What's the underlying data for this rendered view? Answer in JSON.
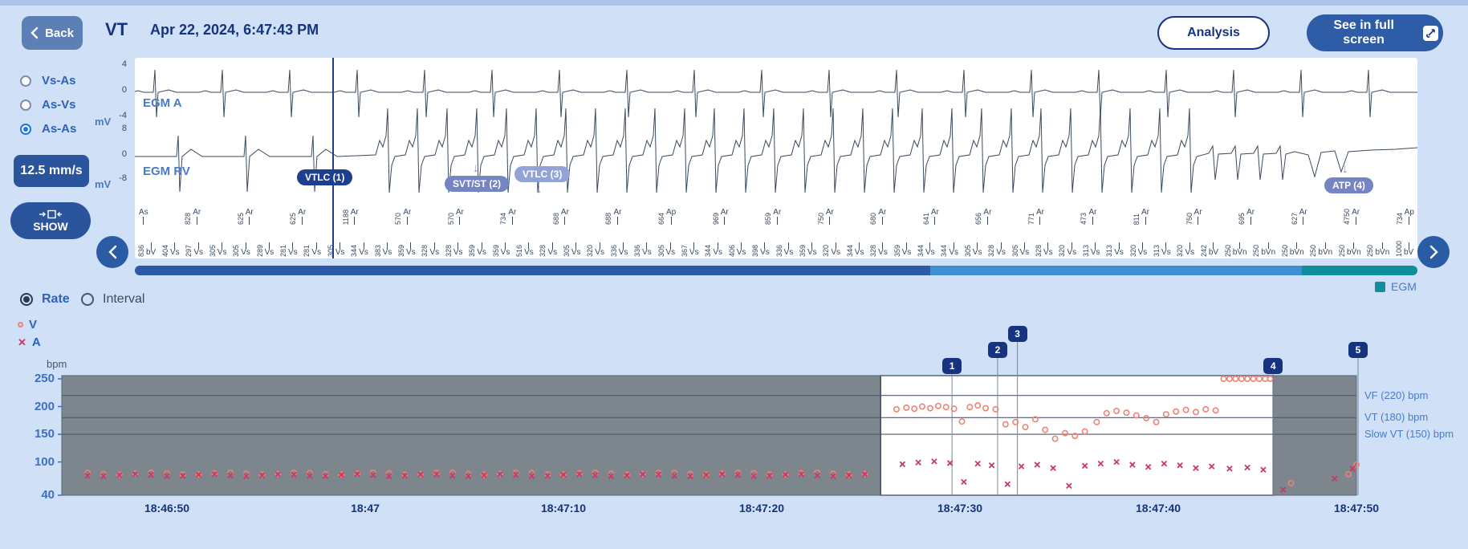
{
  "header": {
    "back_label": "Back",
    "episode_type": "VT",
    "timestamp": "Apr 22, 2024, 6:47:43 PM",
    "analysis_label": "Analysis",
    "fullscreen_label": "See in full screen"
  },
  "sidebar": {
    "channel_options": [
      {
        "label": "Vs-As",
        "selected": false
      },
      {
        "label": "As-Vs",
        "selected": false
      },
      {
        "label": "As-As",
        "selected": true
      }
    ],
    "speed_label": "12.5 mm/s",
    "show_label": "SHOW"
  },
  "egm": {
    "channel_a": {
      "label": "EGM A",
      "unit": "mV",
      "scale_ticks": [
        "4",
        "0",
        "-4"
      ]
    },
    "channel_rv": {
      "label": "EGM RV",
      "unit": "mV",
      "scale_ticks": [
        "8",
        "0",
        "-8"
      ]
    },
    "episode_markers": [
      {
        "label": "VTLC (1)"
      },
      {
        "label": "SVT/ST (2)"
      },
      {
        "label": "VTLC (3)"
      },
      {
        "label": "ATP (4)"
      }
    ],
    "marker_channel": {
      "atrial": [
        [
          "",
          "As"
        ],
        [
          "828",
          "Ar"
        ],
        [
          "625",
          "Ar"
        ],
        [
          "625",
          "Ar"
        ],
        [
          "1188",
          "Ar"
        ],
        [
          "570",
          "Ar"
        ],
        [
          "570",
          "Ar"
        ],
        [
          "734",
          "Ar"
        ],
        [
          "688",
          "Ar"
        ],
        [
          "688",
          "Ar"
        ],
        [
          "664",
          "Ap"
        ],
        [
          "969",
          "Ar"
        ],
        [
          "859",
          "Ar"
        ],
        [
          "750",
          "Ar"
        ],
        [
          "680",
          "Ar"
        ],
        [
          "641",
          "Ar"
        ],
        [
          "656",
          "Ar"
        ],
        [
          "771",
          "Ar"
        ],
        [
          "473",
          "Ar"
        ],
        [
          "811",
          "Ar"
        ],
        [
          "750",
          "Ar"
        ],
        [
          "695",
          "Ar"
        ],
        [
          "627",
          "Ar"
        ],
        [
          "4750",
          "Ar"
        ],
        [
          "734",
          "Ap"
        ]
      ],
      "ventricular": [
        [
          "836",
          "bV"
        ],
        [
          "404",
          "Vs"
        ],
        [
          "297",
          "Vs"
        ],
        [
          "305",
          "Vs"
        ],
        [
          "305",
          "Vs"
        ],
        [
          "289",
          "Vs"
        ],
        [
          "281",
          "Vs"
        ],
        [
          "281",
          "Vs"
        ],
        [
          "305",
          "Vs"
        ],
        [
          "344",
          "Vs"
        ],
        [
          "383",
          "Vs"
        ],
        [
          "359",
          "Vs"
        ],
        [
          "328",
          "Vs"
        ],
        [
          "328",
          "Vs"
        ],
        [
          "359",
          "Vs"
        ],
        [
          "359",
          "Vs"
        ],
        [
          "516",
          "Vs"
        ],
        [
          "328",
          "Vs"
        ],
        [
          "305",
          "Vs"
        ],
        [
          "320",
          "Vs"
        ],
        [
          "336",
          "Vs"
        ],
        [
          "336",
          "Vs"
        ],
        [
          "305",
          "Vs"
        ],
        [
          "367",
          "Vs"
        ],
        [
          "344",
          "Vs"
        ],
        [
          "406",
          "Vs"
        ],
        [
          "398",
          "Vs"
        ],
        [
          "336",
          "Vs"
        ],
        [
          "359",
          "Vs"
        ],
        [
          "320",
          "Vs"
        ],
        [
          "344",
          "Vs"
        ],
        [
          "328",
          "Vs"
        ],
        [
          "359",
          "Vs"
        ],
        [
          "344",
          "Vs"
        ],
        [
          "344",
          "Vs"
        ],
        [
          "305",
          "Vs"
        ],
        [
          "328",
          "Vs"
        ],
        [
          "305",
          "Vs"
        ],
        [
          "328",
          "Vs"
        ],
        [
          "320",
          "Vs"
        ],
        [
          "313",
          "Vs"
        ],
        [
          "313",
          "Vs"
        ],
        [
          "320",
          "Vs"
        ],
        [
          "313",
          "Vs"
        ],
        [
          "320",
          "Vs"
        ],
        [
          "242",
          "bV"
        ],
        [
          "250",
          "bVn"
        ],
        [
          "250",
          "bVn"
        ],
        [
          "250",
          "bVn"
        ],
        [
          "250",
          "bVn"
        ],
        [
          "250",
          "bVn"
        ],
        [
          "250",
          "bVn"
        ],
        [
          "1000",
          "bV"
        ]
      ]
    },
    "scrollbar_colors": [
      "#2d5aa8",
      "#3f8fd4",
      "#0f8f9e"
    ],
    "scrollbar_stops": [
      62,
      91
    ],
    "legend_label": "EGM",
    "legend_color": "#0f8f9e"
  },
  "view_toggle": {
    "options": [
      {
        "label": "Rate",
        "selected": true
      },
      {
        "label": "Interval",
        "selected": false
      }
    ]
  },
  "series_legend": {
    "v_label": "V",
    "a_label": "A",
    "v_color": "#ef8274",
    "a_color": "#c53a6a"
  },
  "chart_data": {
    "type": "scatter",
    "ylabel": "bpm",
    "ylim": [
      40,
      255
    ],
    "yticks": [
      250,
      200,
      150,
      100,
      40
    ],
    "x_tick_labels": [
      "18:46:50",
      "18:47",
      "18:47:10",
      "18:47:20",
      "18:47:30",
      "18:47:40",
      "18:47:50"
    ],
    "x_tick_seconds": [
      5,
      15,
      25,
      35,
      45,
      55,
      65
    ],
    "time_reference": "seconds after 18:46:45",
    "thresholds": [
      {
        "label": "VF (220) bpm",
        "bpm": 220
      },
      {
        "label": "VT (180) bpm",
        "bpm": 180
      },
      {
        "label": "Slow VT (150) bpm",
        "bpm": 150
      }
    ],
    "episode_window_seconds": [
      41.0,
      60.8
    ],
    "event_flags": [
      {
        "label": "1",
        "t": 44.6,
        "tier": 0
      },
      {
        "label": "2",
        "t": 46.9,
        "tier": 1
      },
      {
        "label": "3",
        "t": 47.9,
        "tier": 2
      },
      {
        "label": "4",
        "t": 60.8,
        "tier": 0
      },
      {
        "label": "5",
        "t": 65.6,
        "tier": 1
      }
    ],
    "series": [
      {
        "name": "V",
        "marker": "circle",
        "color": "#ef8274",
        "baseline": {
          "t_start": 1.0,
          "t_end": 40.6,
          "step": 0.8,
          "bpm": 79
        },
        "points": [
          [
            41.8,
            195
          ],
          [
            42.3,
            198
          ],
          [
            42.7,
            196
          ],
          [
            43.1,
            200
          ],
          [
            43.5,
            197
          ],
          [
            43.9,
            201
          ],
          [
            44.3,
            199
          ],
          [
            44.7,
            196
          ],
          [
            45.1,
            173
          ],
          [
            45.5,
            199
          ],
          [
            45.9,
            202
          ],
          [
            46.3,
            197
          ],
          [
            46.8,
            195
          ],
          [
            47.3,
            168
          ],
          [
            47.8,
            172
          ],
          [
            48.3,
            163
          ],
          [
            48.8,
            177
          ],
          [
            49.3,
            158
          ],
          [
            49.8,
            142
          ],
          [
            50.3,
            152
          ],
          [
            50.8,
            147
          ],
          [
            51.3,
            155
          ],
          [
            51.9,
            172
          ],
          [
            52.4,
            188
          ],
          [
            52.9,
            192
          ],
          [
            53.4,
            189
          ],
          [
            53.9,
            184
          ],
          [
            54.4,
            179
          ],
          [
            54.9,
            172
          ],
          [
            55.4,
            186
          ],
          [
            55.9,
            191
          ],
          [
            56.4,
            194
          ],
          [
            56.9,
            190
          ],
          [
            57.4,
            195
          ],
          [
            57.9,
            193
          ],
          [
            58.3,
            250
          ],
          [
            58.6,
            250
          ],
          [
            58.9,
            250
          ],
          [
            59.2,
            250
          ],
          [
            59.5,
            250
          ],
          [
            59.8,
            250
          ],
          [
            60.1,
            250
          ],
          [
            60.4,
            250
          ],
          [
            60.65,
            250
          ],
          [
            61.7,
            62
          ],
          [
            64.6,
            78
          ],
          [
            65.0,
            95
          ]
        ]
      },
      {
        "name": "A",
        "marker": "cross",
        "color": "#c53a6a",
        "baseline": {
          "t_start": 1.0,
          "t_end": 40.6,
          "step": 0.8,
          "bpm": 76
        },
        "points": [
          [
            42.1,
            96
          ],
          [
            42.9,
            99
          ],
          [
            43.7,
            101
          ],
          [
            44.5,
            98
          ],
          [
            45.2,
            64
          ],
          [
            45.9,
            97
          ],
          [
            46.6,
            94
          ],
          [
            47.4,
            60
          ],
          [
            48.1,
            92
          ],
          [
            48.9,
            95
          ],
          [
            49.7,
            89
          ],
          [
            50.5,
            57
          ],
          [
            51.3,
            93
          ],
          [
            52.1,
            97
          ],
          [
            52.9,
            100
          ],
          [
            53.7,
            95
          ],
          [
            54.5,
            91
          ],
          [
            55.3,
            97
          ],
          [
            56.1,
            94
          ],
          [
            56.9,
            89
          ],
          [
            57.7,
            92
          ],
          [
            58.6,
            88
          ],
          [
            59.5,
            90
          ],
          [
            60.3,
            86
          ],
          [
            61.3,
            50
          ],
          [
            63.9,
            70
          ],
          [
            64.8,
            88
          ]
        ]
      }
    ]
  }
}
